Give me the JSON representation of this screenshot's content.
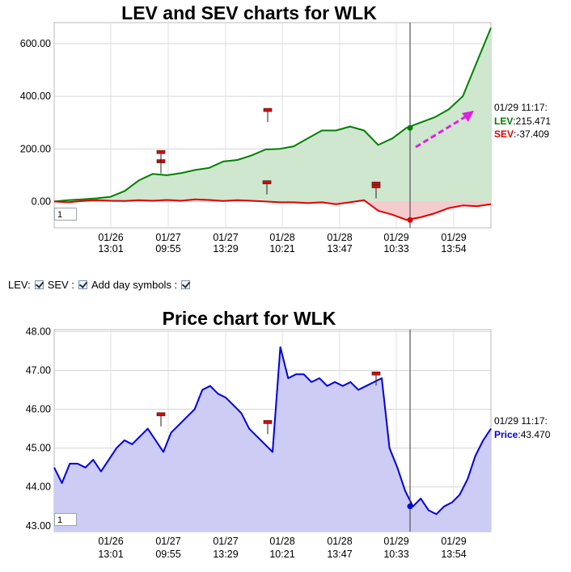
{
  "chart_data": [
    {
      "type": "line",
      "title": "LEV and SEV charts for WLK",
      "ylim": [
        -100,
        680
      ],
      "yticks": [
        "600.00",
        "400.00",
        "200.00",
        "0.00"
      ],
      "ytick_values": [
        600,
        400,
        200,
        0
      ],
      "xticks": [
        {
          "date": "01/26",
          "time": "13:01"
        },
        {
          "date": "01/27",
          "time": "09:55"
        },
        {
          "date": "01/27",
          "time": "13:29"
        },
        {
          "date": "01/28",
          "time": "10:21"
        },
        {
          "date": "01/28",
          "time": "13:47"
        },
        {
          "date": "01/29",
          "time": "10:33"
        },
        {
          "date": "01/29",
          "time": "13:54"
        }
      ],
      "grid": true,
      "cursor": {
        "label": "01/29 11:17:"
      },
      "series": [
        {
          "name": "LEV",
          "color": "#008000",
          "fill": "#cfe6cf",
          "cursor_value": "215.471",
          "values": [
            0,
            5,
            8,
            12,
            18,
            40,
            80,
            105,
            100,
            108,
            120,
            128,
            152,
            158,
            175,
            198,
            200,
            210,
            240,
            270,
            270,
            285,
            270,
            215,
            240,
            280,
            300,
            320,
            350,
            400,
            530,
            660
          ]
        },
        {
          "name": "SEV",
          "color": "#e00000",
          "fill": "#f5cccc",
          "cursor_value": "-37.409",
          "values": [
            0,
            -3,
            2,
            5,
            3,
            2,
            5,
            3,
            6,
            3,
            8,
            6,
            2,
            5,
            3,
            0,
            -3,
            -3,
            -6,
            -3,
            -10,
            -3,
            5,
            -35,
            -50,
            -70,
            -60,
            -45,
            -25,
            -15,
            -18,
            -10
          ]
        }
      ],
      "day_symbols": [
        {
          "series": "LEV",
          "value": 150
        },
        {
          "series": "LEV",
          "value": 185
        },
        {
          "series": "LEV",
          "value": 345
        },
        {
          "series": "SEV",
          "value": 65
        },
        {
          "series": "SEV",
          "value": 70
        },
        {
          "series": "SEV",
          "value": 55
        }
      ],
      "arrow": {
        "color": "#e020e0"
      }
    },
    {
      "type": "area",
      "title": "Price chart for WLK",
      "ylim": [
        42.85,
        48.05
      ],
      "yticks": [
        "48.00",
        "47.00",
        "46.00",
        "45.00",
        "44.00",
        "43.00"
      ],
      "ytick_values": [
        48,
        47,
        46,
        45,
        44,
        43
      ],
      "xticks": [
        {
          "date": "01/26",
          "time": "13:01"
        },
        {
          "date": "01/27",
          "time": "09:55"
        },
        {
          "date": "01/27",
          "time": "13:29"
        },
        {
          "date": "01/28",
          "time": "10:21"
        },
        {
          "date": "01/28",
          "time": "13:47"
        },
        {
          "date": "01/29",
          "time": "10:33"
        },
        {
          "date": "01/29",
          "time": "13:54"
        }
      ],
      "grid": true,
      "cursor": {
        "label": "01/29 11:17:"
      },
      "series": [
        {
          "name": "Price",
          "color": "#0000dd",
          "fill": "#ccccf5",
          "cursor_value": "43.470",
          "values": [
            44.5,
            44.1,
            44.6,
            44.6,
            44.5,
            44.7,
            44.4,
            44.7,
            45.0,
            45.2,
            45.1,
            45.3,
            45.5,
            45.2,
            44.9,
            45.4,
            45.6,
            45.8,
            46.0,
            46.5,
            46.6,
            46.4,
            46.3,
            46.1,
            45.9,
            45.5,
            45.3,
            45.1,
            44.9,
            47.6,
            46.8,
            46.9,
            46.9,
            46.7,
            46.8,
            46.6,
            46.7,
            46.6,
            46.7,
            46.5,
            46.6,
            46.7,
            46.8,
            45.0,
            44.5,
            43.9,
            43.5,
            43.7,
            43.4,
            43.3,
            43.5,
            43.6,
            43.8,
            44.2,
            44.8,
            45.2,
            45.5
          ]
        }
      ],
      "day_symbols": [
        {
          "series": "Price",
          "value": 45.85
        },
        {
          "series": "Price",
          "value": 45.65
        },
        {
          "series": "Price",
          "value": 46.9
        }
      ]
    }
  ],
  "controls": {
    "lev_label": "LEV:",
    "sev_label": "SEV :",
    "day_label": "Add day symbols :"
  },
  "inputs": {
    "top_value": "1",
    "bottom_value": "1"
  }
}
